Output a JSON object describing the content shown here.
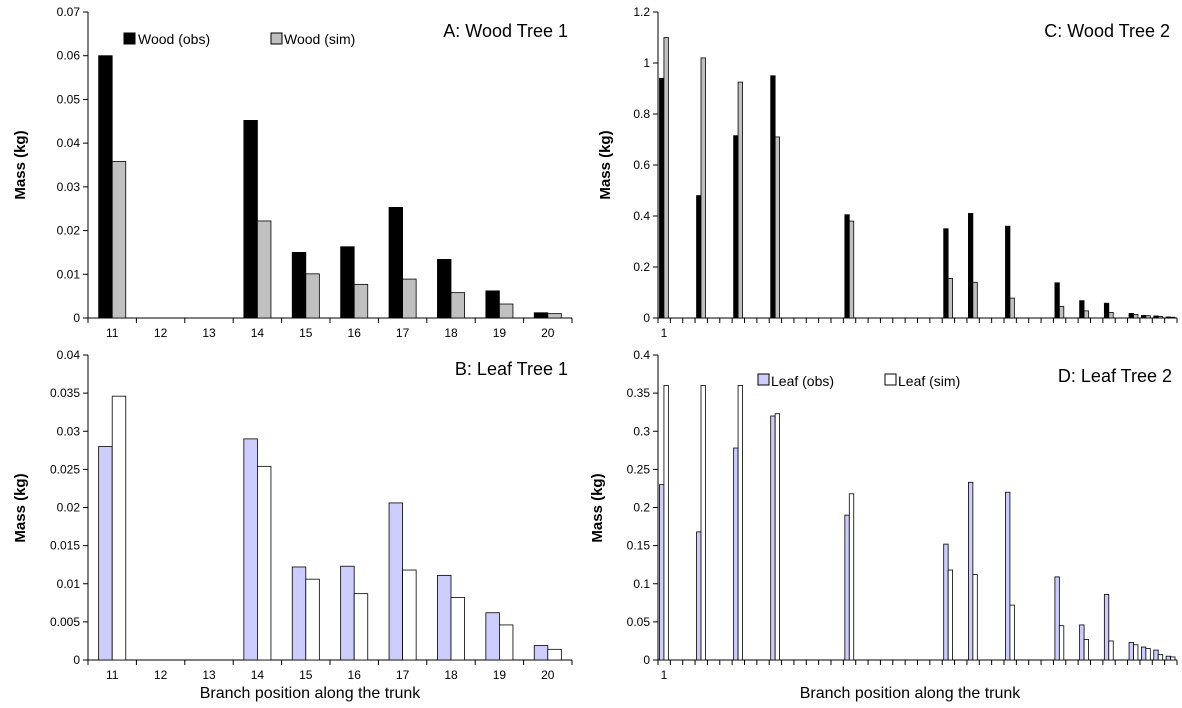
{
  "colors": {
    "wood_obs": "#000000",
    "wood_sim": "#c0c0c0",
    "leaf_obs": "#ccccff",
    "leaf_sim": "#ffffff",
    "outline": "#000000"
  },
  "chart_data": [
    {
      "id": "A",
      "type": "bar",
      "title": "A: Wood Tree 1",
      "xlabel": "",
      "ylabel": "Mass (kg)",
      "ylim": [
        0,
        0.07
      ],
      "yticks": [
        "0",
        "0.01",
        "0.02",
        "0.03",
        "0.04",
        "0.05",
        "0.06",
        "0.07"
      ],
      "categories": [
        "11",
        "12",
        "13",
        "14",
        "15",
        "16",
        "17",
        "18",
        "19",
        "20"
      ],
      "legend": "top",
      "series": [
        {
          "name": "Wood (obs)",
          "values": [
            0.06,
            0,
            0,
            0.0452,
            0.015,
            0.0163,
            0.0253,
            0.0134,
            0.0062,
            0.0012
          ]
        },
        {
          "name": "Wood (sim)",
          "values": [
            0.0358,
            0,
            0,
            0.0222,
            0.0101,
            0.0077,
            0.0089,
            0.0058,
            0.0032,
            0.001
          ]
        }
      ]
    },
    {
      "id": "B",
      "type": "bar",
      "title": "B: Leaf Tree 1",
      "xlabel": "Branch position along the trunk",
      "ylabel": "Mass (kg)",
      "ylim": [
        0,
        0.04
      ],
      "yticks": [
        "0",
        "0.005",
        "0.01",
        "0.015",
        "0.02",
        "0.025",
        "0.03",
        "0.035",
        "0.04"
      ],
      "categories": [
        "11",
        "12",
        "13",
        "14",
        "15",
        "16",
        "17",
        "18",
        "19",
        "20"
      ],
      "series": [
        {
          "values": [
            0.028,
            0,
            0,
            0.029,
            0.0122,
            0.0123,
            0.0206,
            0.0111,
            0.0062,
            0.0019
          ]
        },
        {
          "values": [
            0.0346,
            0,
            0,
            0.0254,
            0.0106,
            0.0087,
            0.0118,
            0.0082,
            0.0046,
            0.0014
          ]
        }
      ]
    },
    {
      "id": "C",
      "type": "bar",
      "title": "C: Wood Tree 2",
      "xlabel": "",
      "ylabel": "Mass (kg)",
      "ylim": [
        0,
        1.2
      ],
      "yticks": [
        "0",
        "0.2",
        "0.4",
        "0.6",
        "0.8",
        "1",
        "1.2"
      ],
      "x_first_label": "1",
      "n_categories": 42,
      "series": [
        {
          "values": [
            0.94,
            0,
            0,
            0.48,
            0,
            0,
            0.715,
            0,
            0,
            0.95,
            0,
            0,
            0,
            0,
            0,
            0.405,
            0,
            0,
            0,
            0,
            0,
            0,
            0,
            0.35,
            0,
            0.41,
            0,
            0,
            0.36,
            0,
            0,
            0,
            0.138,
            0,
            0.068,
            0,
            0.058,
            0,
            0.018,
            0.01,
            0.008,
            0.004
          ]
        },
        {
          "values": [
            1.1,
            0,
            0,
            1.02,
            0,
            0,
            0.925,
            0,
            0,
            0.71,
            0,
            0,
            0,
            0,
            0,
            0.38,
            0,
            0,
            0,
            0,
            0,
            0,
            0,
            0.155,
            0,
            0.14,
            0,
            0,
            0.078,
            0,
            0,
            0,
            0.045,
            0,
            0.028,
            0,
            0.022,
            0,
            0.014,
            0.009,
            0.006,
            0.003
          ]
        }
      ]
    },
    {
      "id": "D",
      "type": "bar",
      "title": "D: Leaf Tree 2",
      "xlabel": "Branch position along the trunk",
      "ylabel": "Mass (kg)",
      "ylim": [
        0,
        0.4
      ],
      "yticks": [
        "0",
        "0.05",
        "0.1",
        "0.15",
        "0.2",
        "0.25",
        "0.3",
        "0.35",
        "0.4"
      ],
      "x_first_label": "1",
      "n_categories": 42,
      "legend": "top",
      "series": [
        {
          "name": "Leaf (obs)",
          "values": [
            0.23,
            0,
            0,
            0.168,
            0,
            0,
            0.278,
            0,
            0,
            0.32,
            0,
            0,
            0,
            0,
            0,
            0.19,
            0,
            0,
            0,
            0,
            0,
            0,
            0,
            0.152,
            0,
            0.233,
            0,
            0,
            0.22,
            0,
            0,
            0,
            0.109,
            0,
            0.046,
            0,
            0.086,
            0,
            0.023,
            0.017,
            0.013,
            0.005
          ]
        },
        {
          "name": "Leaf (sim)",
          "values": [
            0.36,
            0,
            0,
            0.36,
            0,
            0,
            0.36,
            0,
            0,
            0.323,
            0,
            0,
            0,
            0,
            0,
            0.218,
            0,
            0,
            0,
            0,
            0,
            0,
            0,
            0.118,
            0,
            0.112,
            0,
            0,
            0.072,
            0,
            0,
            0,
            0.045,
            0,
            0.027,
            0,
            0.025,
            0,
            0.02,
            0.015,
            0.007,
            0.004
          ]
        }
      ]
    }
  ]
}
